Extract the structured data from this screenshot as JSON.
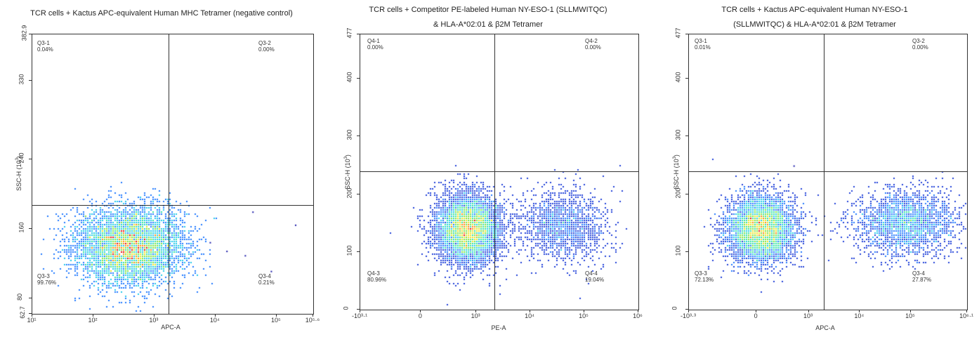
{
  "chart_data": [
    {
      "type": "scatter",
      "title": "TCR cells + Kactus APC-equivalent Human MHC Tetramer (negative control)",
      "xlabel": "APC-A",
      "ylabel": "SSC-H (10³)",
      "x_scale": "log",
      "xlim": [
        10,
        398107
      ],
      "ylim": [
        62.7,
        382.9
      ],
      "x_ticks": [
        "10¹",
        "10²",
        "10³",
        "10⁴",
        "10⁵",
        "10⁵·⁶"
      ],
      "y_ticks": [
        "62.7",
        "80",
        "160",
        "240",
        "330",
        "382.9"
      ],
      "y_tick_values": [
        62.7,
        80,
        160,
        240,
        330,
        382.9
      ],
      "gate": {
        "x": 1700,
        "y": 187
      },
      "quadrants": [
        {
          "name": "Q3-1",
          "percent": "0.04%"
        },
        {
          "name": "Q3-2",
          "percent": "0.00%"
        },
        {
          "name": "Q3-3",
          "percent": "99.76%"
        },
        {
          "name": "Q3-4",
          "percent": "0.21%"
        }
      ],
      "clusters": [
        {
          "x_center": 400,
          "x_spread_log": 0.45,
          "y_center": 140,
          "y_spread": 22,
          "count": 4800
        }
      ],
      "outliers": [
        {
          "x": 40000,
          "y": 180
        },
        {
          "x": 80000,
          "y": 112
        },
        {
          "x": 200000,
          "y": 165
        },
        {
          "x": 8000,
          "y": 145
        },
        {
          "x": 15000,
          "y": 135
        },
        {
          "x": 30000,
          "y": 130
        }
      ]
    },
    {
      "type": "scatter",
      "title": "TCR cells + Competitor PE-labeled Human NY-ESO-1 (SLLMWITQC) & HLA-A*02:01 & β2M Tetramer",
      "xlabel": "PE-A",
      "ylabel": "SSC-H (10³)",
      "x_scale": "biexponential",
      "xlim": [
        -1259,
        1000000
      ],
      "ylim": [
        0,
        477
      ],
      "x_ticks": [
        "-10³·¹",
        "0",
        "10³",
        "10⁴",
        "10⁵",
        "10⁶"
      ],
      "x_tick_values": [
        -1259,
        0,
        1000,
        10000,
        100000,
        1000000
      ],
      "y_ticks": [
        "0",
        "100",
        "200",
        "300",
        "400",
        "477"
      ],
      "y_tick_values": [
        0,
        100,
        200,
        300,
        400,
        477
      ],
      "gate": {
        "x": 2200,
        "y": 240
      },
      "quadrants": [
        {
          "name": "Q4-1",
          "percent": "0.00%"
        },
        {
          "name": "Q4-2",
          "percent": "0.00%"
        },
        {
          "name": "Q4-3",
          "percent": "80.96%"
        },
        {
          "name": "Q4-4",
          "percent": "19.04%"
        }
      ],
      "clusters": [
        {
          "x_center": 700,
          "x_spread_log": 0.3,
          "y_center": 140,
          "y_spread": 30,
          "count": 6000
        },
        {
          "x_center": 40000,
          "x_spread_log": 0.4,
          "y_center": 145,
          "y_spread": 30,
          "count": 1600
        }
      ],
      "outliers": []
    },
    {
      "type": "scatter",
      "title": "TCR cells + Kactus APC-equivalent Human NY-ESO-1 (SLLMWITQC) & HLA-A*02:01 & β2M Tetramer",
      "xlabel": "APC-A",
      "ylabel": "SSC-H (10³)",
      "x_scale": "biexponential",
      "xlim": [
        -1995,
        1258925
      ],
      "ylim": [
        0,
        477
      ],
      "x_ticks": [
        "-10³·³",
        "0",
        "10³",
        "10⁴",
        "10⁵",
        "10⁶·¹"
      ],
      "x_tick_values": [
        -1995,
        0,
        1000,
        10000,
        100000,
        1258925
      ],
      "y_ticks": [
        "0",
        "100",
        "200",
        "300",
        "400",
        "477"
      ],
      "y_tick_values": [
        0,
        100,
        200,
        300,
        400,
        477
      ],
      "gate": {
        "x": 2000,
        "y": 240
      },
      "quadrants": [
        {
          "name": "Q3-1",
          "percent": "0.01%"
        },
        {
          "name": "Q3-2",
          "percent": "0.00%"
        },
        {
          "name": "Q3-3",
          "percent": "72.13%"
        },
        {
          "name": "Q3-4",
          "percent": "27.87%"
        }
      ],
      "clusters": [
        {
          "x_center": 50,
          "x_spread_log": 0.5,
          "y_center": 140,
          "y_spread": 28,
          "count": 5000
        },
        {
          "x_center": 80000,
          "x_spread_log": 0.5,
          "y_center": 150,
          "y_spread": 28,
          "count": 2200
        }
      ],
      "outliers": [
        {
          "x": 500,
          "y": 250
        }
      ]
    }
  ]
}
